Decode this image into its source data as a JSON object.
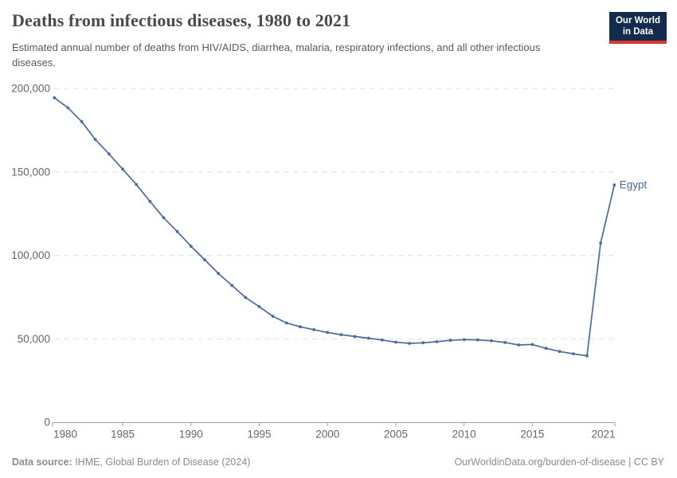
{
  "header": {
    "title": "Deaths from infectious diseases, 1980 to 2021",
    "subtitle": "Estimated annual number of deaths from HIV/AIDS, diarrhea, malaria, respiratory infections, and all other infectious diseases.",
    "logo": {
      "line1": "Our World",
      "line2": "in Data"
    }
  },
  "chart_data": {
    "type": "line",
    "title": "Deaths from infectious diseases, 1980 to 2021",
    "xlabel": "",
    "ylabel": "",
    "xlim": [
      1980,
      2021
    ],
    "ylim": [
      0,
      200000
    ],
    "grid": "horizontal-dashed",
    "legend_position": "end-of-line-label",
    "x_ticks": [
      1980,
      1985,
      1990,
      1995,
      2000,
      2005,
      2010,
      2015,
      2021
    ],
    "y_ticks": [
      0,
      50000,
      100000,
      150000,
      200000
    ],
    "y_tick_labels": [
      "0",
      "50,000",
      "100,000",
      "150,000",
      "200,000"
    ],
    "series": [
      {
        "name": "Egypt",
        "color": "#4c6a9c",
        "x": [
          1980,
          1981,
          1982,
          1983,
          1984,
          1985,
          1986,
          1987,
          1988,
          1989,
          1990,
          1991,
          1992,
          1993,
          1994,
          1995,
          1996,
          1997,
          1998,
          1999,
          2000,
          2001,
          2002,
          2003,
          2004,
          2005,
          2006,
          2007,
          2008,
          2009,
          2010,
          2011,
          2012,
          2013,
          2014,
          2015,
          2016,
          2017,
          2018,
          2019,
          2020,
          2021
        ],
        "values": [
          194500,
          188500,
          180200,
          169500,
          160800,
          151700,
          142500,
          132400,
          122600,
          114300,
          105500,
          97400,
          89200,
          82000,
          74800,
          69300,
          63500,
          59500,
          57200,
          55500,
          53800,
          52500,
          51400,
          50400,
          49300,
          48000,
          47300,
          47600,
          48300,
          49100,
          49500,
          49400,
          48800,
          47800,
          46300,
          46600,
          44300,
          42400,
          41000,
          39800,
          107400,
          142200
        ]
      }
    ]
  },
  "footer": {
    "source_label": "Data source:",
    "source_text": " IHME, Global Burden of Disease (2024)",
    "attribution": "OurWorldinData.org/burden-of-disease | CC BY"
  },
  "colors": {
    "line": "#4c6a9c",
    "grid": "#e0e0e0",
    "axis": "#a1a1a1",
    "tick_label": "#666666",
    "logo_bg": "#132c4d",
    "logo_accent": "#d8382e"
  }
}
